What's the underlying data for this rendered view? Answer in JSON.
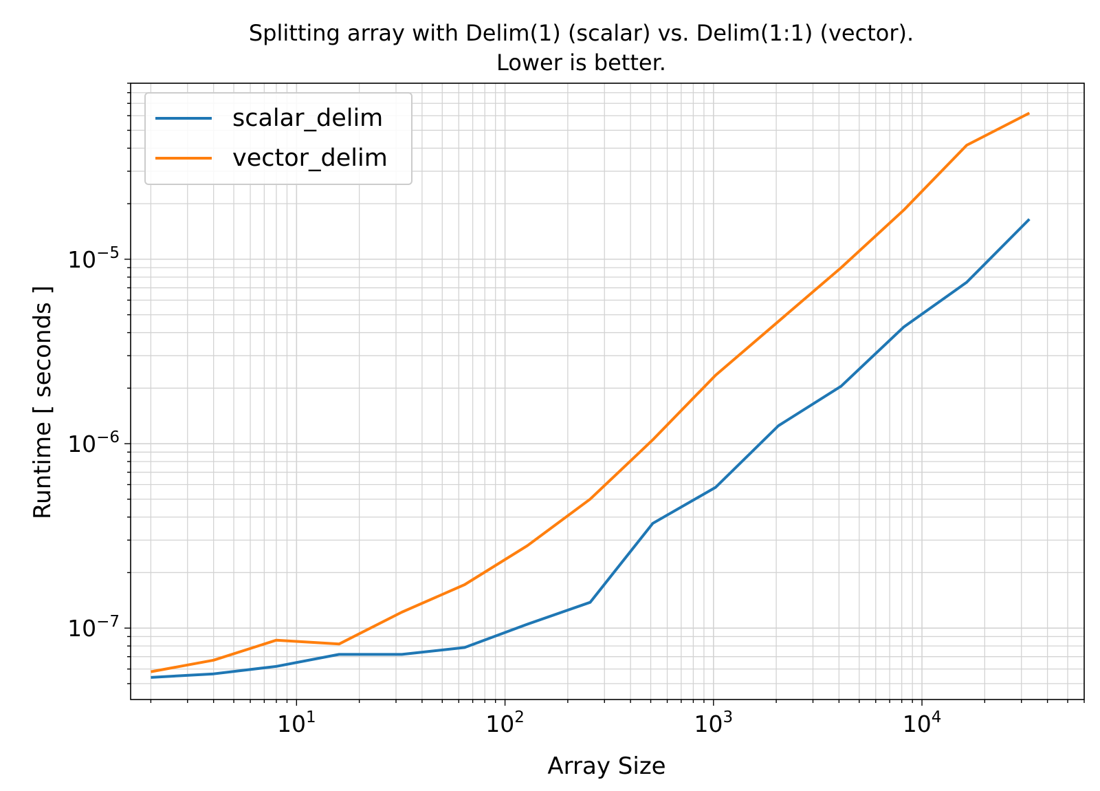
{
  "chart_data": {
    "type": "line",
    "title_line1": "Splitting array with Delim(1) (scalar) vs. Delim(1:1) (vector).",
    "title_line2": "Lower is better.",
    "xlabel": "Array Size",
    "ylabel": "Runtime [ seconds ]",
    "xscale": "log",
    "yscale": "log",
    "xlim": [
      1.6,
      60000
    ],
    "ylim": [
      4.1e-08,
      9e-05
    ],
    "xticks": [
      {
        "value": 10,
        "base": "10",
        "exp": "1"
      },
      {
        "value": 100,
        "base": "10",
        "exp": "2"
      },
      {
        "value": 1000,
        "base": "10",
        "exp": "3"
      },
      {
        "value": 10000,
        "base": "10",
        "exp": "4"
      }
    ],
    "yticks": [
      {
        "value": 1e-07,
        "base": "10",
        "exp": "−7"
      },
      {
        "value": 1e-06,
        "base": "10",
        "exp": "−6"
      },
      {
        "value": 1e-05,
        "base": "10",
        "exp": "−5"
      }
    ],
    "grid": true,
    "legend_position": "top-left",
    "x": [
      2,
      4,
      8,
      16,
      32,
      64,
      128,
      256,
      512,
      1024,
      2048,
      4096,
      8192,
      16384,
      32768
    ],
    "series": [
      {
        "name": "scalar_delim",
        "color": "#1f77b4",
        "values": [
          5.4e-08,
          5.65e-08,
          6.2e-08,
          7.2e-08,
          7.2e-08,
          7.85e-08,
          1.05e-07,
          1.38e-07,
          3.7e-07,
          5.8e-07,
          1.25e-06,
          2.05e-06,
          4.3e-06,
          7.5e-06,
          1.65e-05
        ]
      },
      {
        "name": "vector_delim",
        "color": "#ff7f0e",
        "values": [
          5.8e-08,
          6.7e-08,
          8.6e-08,
          8.2e-08,
          1.22e-07,
          1.72e-07,
          2.8e-07,
          5e-07,
          1.05e-06,
          2.35e-06,
          4.6e-06,
          9e-06,
          1.85e-05,
          4.15e-05,
          6.2e-05
        ]
      }
    ]
  }
}
